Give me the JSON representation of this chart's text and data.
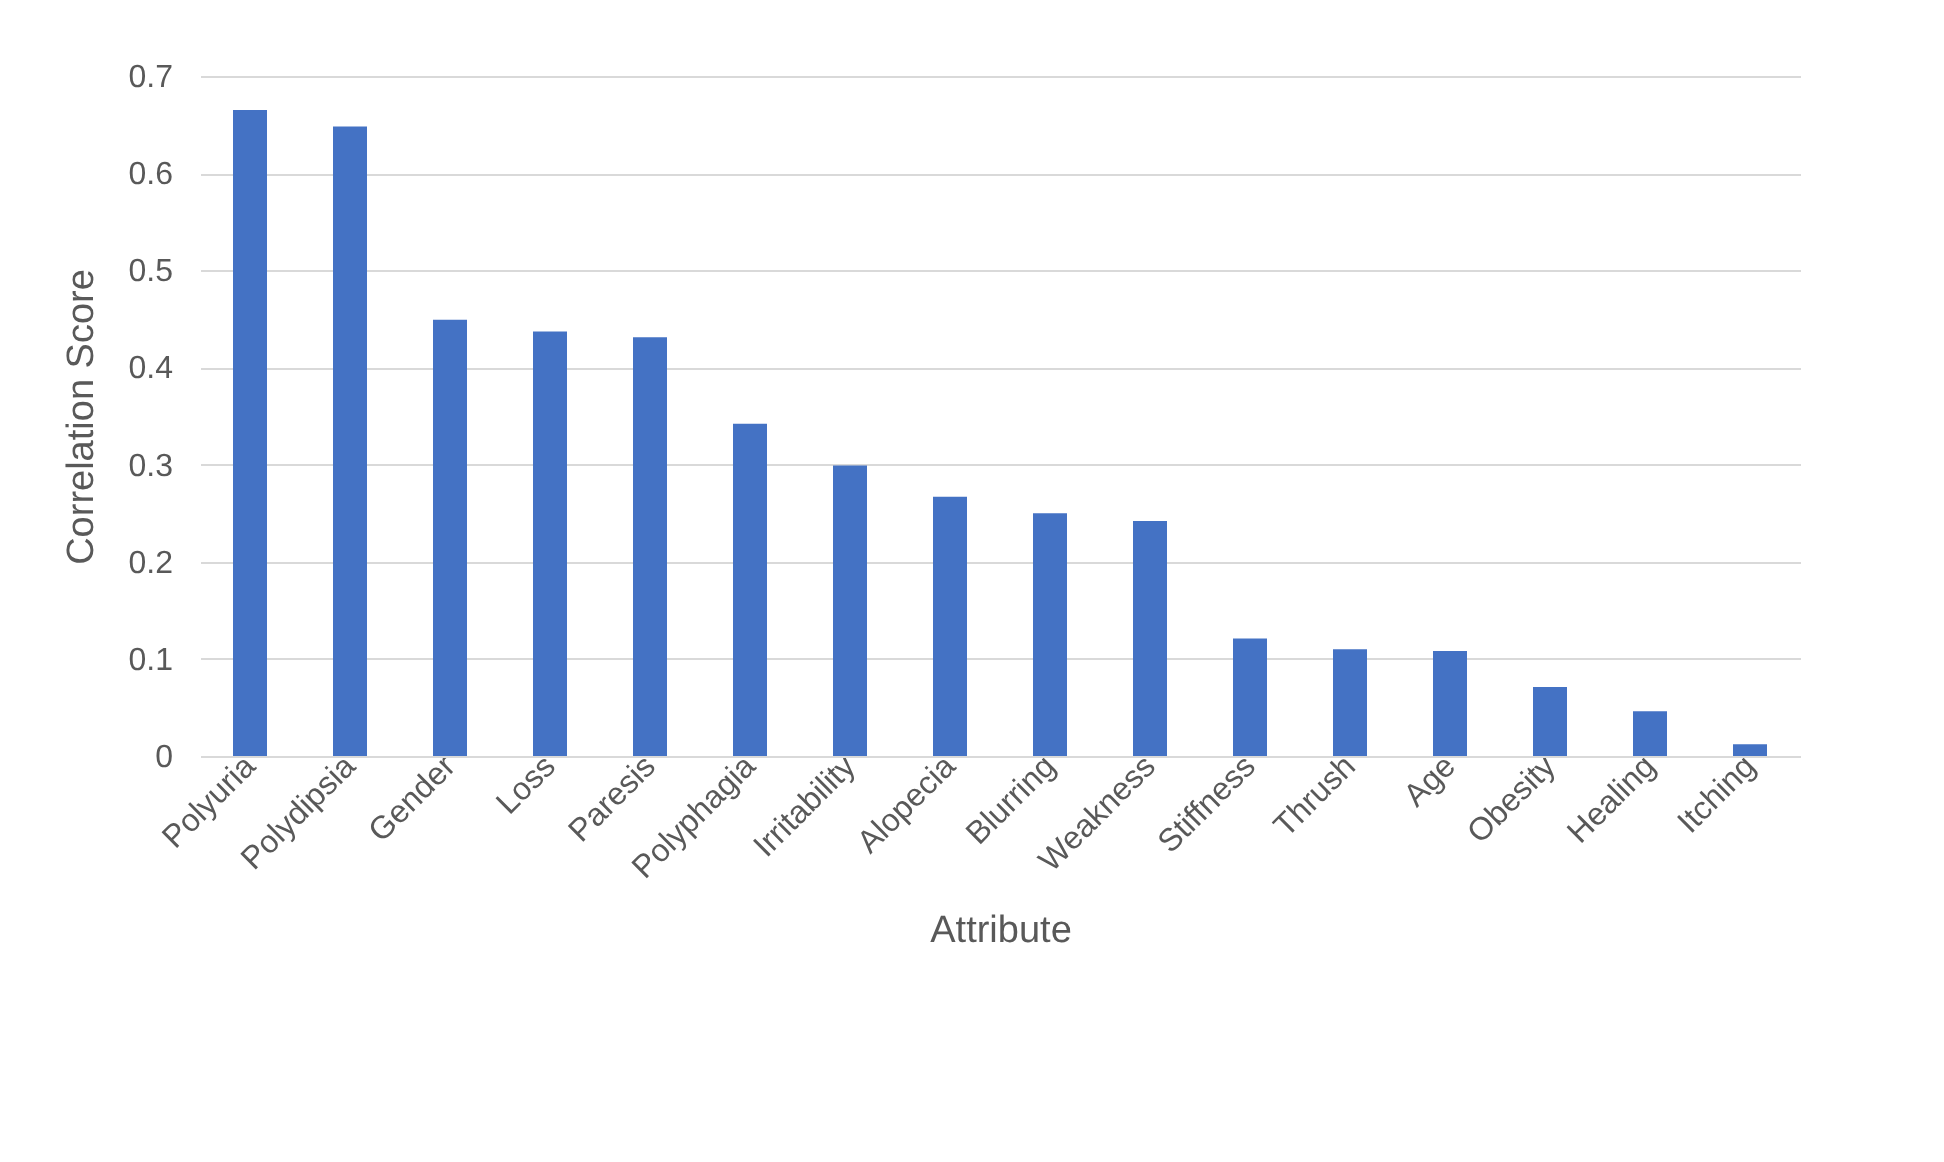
{
  "chart_data": {
    "type": "bar",
    "xlabel": "Attribute",
    "ylabel": "Correlation Score",
    "categories": [
      "Polyuria",
      "Polydipsia",
      "Gender",
      "Loss",
      "Paresis",
      "Polyphagia",
      "Irritability",
      "Alopecia",
      "Blurring",
      "Weakness",
      "Stiffness",
      "Thrush",
      "Age",
      "Obesity",
      "Healing",
      "Itching"
    ],
    "values": [
      0.665,
      0.648,
      0.449,
      0.437,
      0.431,
      0.342,
      0.299,
      0.267,
      0.25,
      0.242,
      0.121,
      0.11,
      0.108,
      0.071,
      0.046,
      0.012
    ],
    "color": "#4472c4",
    "ylim": [
      0,
      0.7
    ],
    "yticks": [
      0,
      0.1,
      0.2,
      0.3,
      0.4,
      0.5,
      0.6,
      0.7
    ],
    "grid": "y"
  }
}
